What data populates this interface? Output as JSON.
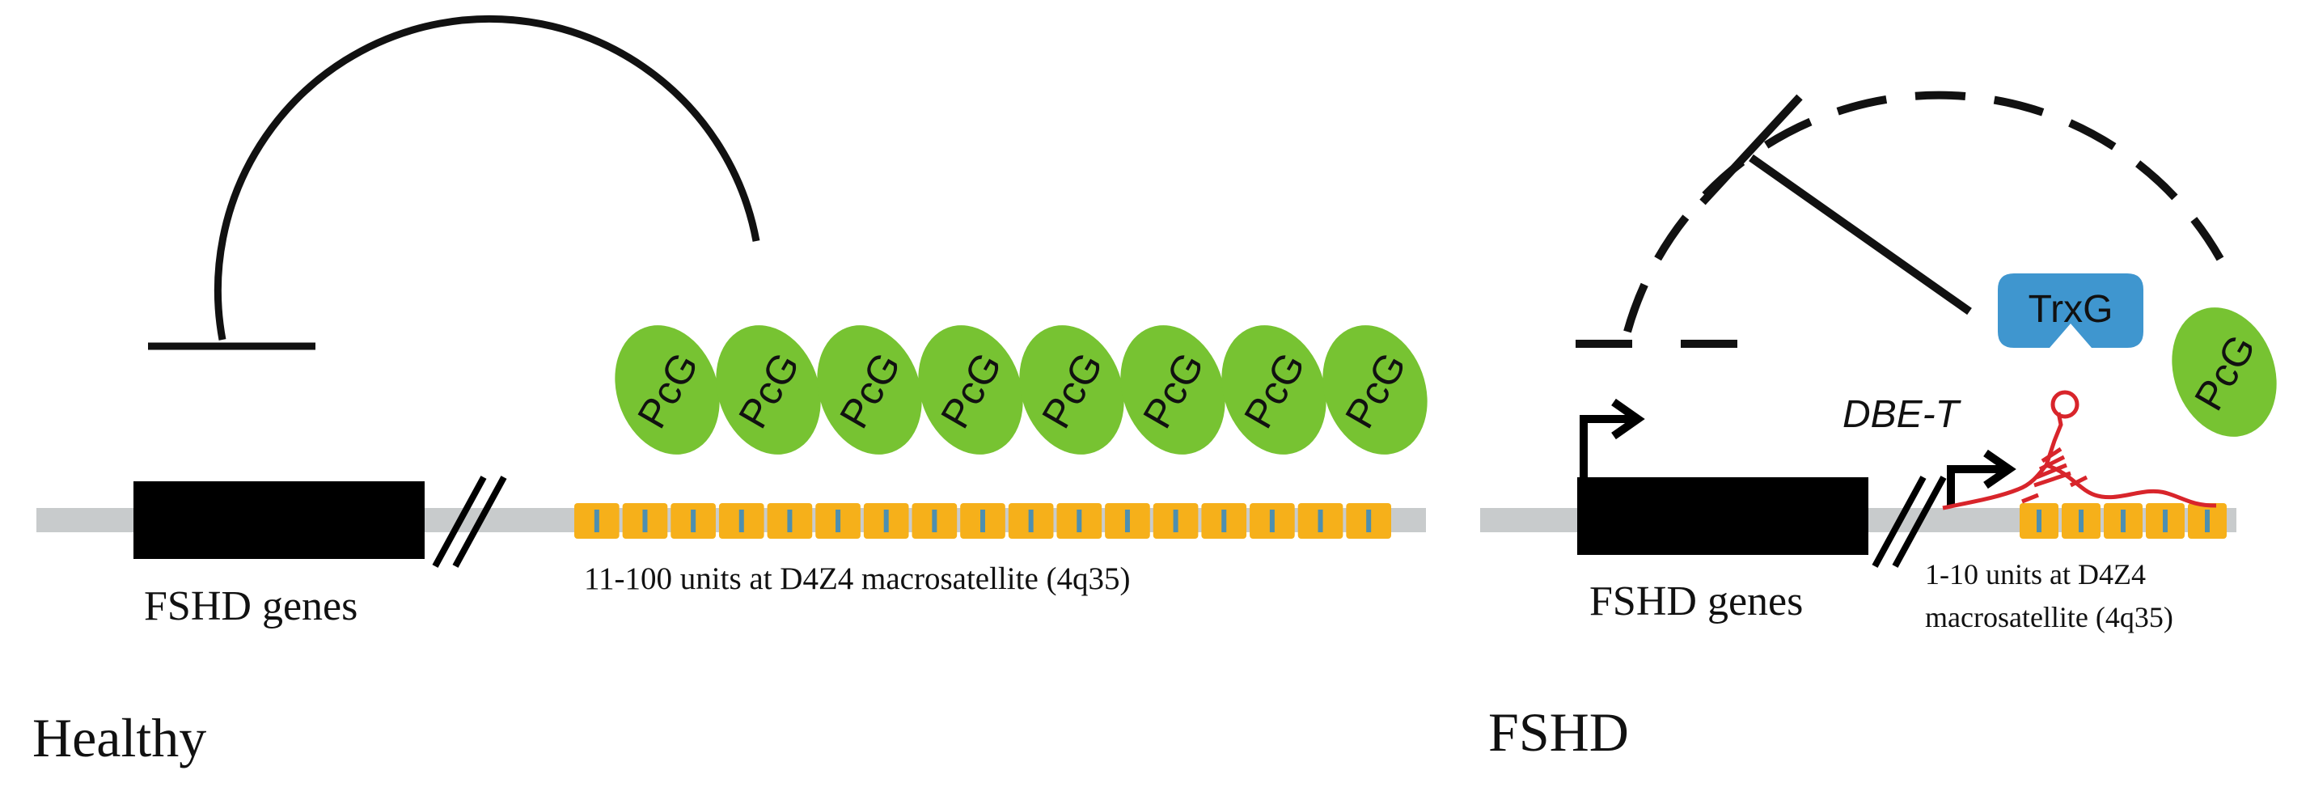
{
  "colors": {
    "background": "#ffffff",
    "dna_strand": "#c8cbcc",
    "repeat_unit": "#f6b01a",
    "repeat_divider": "#4d8fb0",
    "gene_block": "#000000",
    "pcg": "#77c332",
    "pcg_outline": "#5ea623",
    "trxg": "#3f96cf",
    "rna": "#d8252b",
    "line": "#111111"
  },
  "healthy": {
    "panel_label": "Healthy",
    "gene_label": "FSHD genes",
    "repeat_label": "11-100 units at D4Z4 macrosatellite (4q35)",
    "pcg_label": "PcG",
    "pcg_count": 8,
    "repeat_unit_count": 17
  },
  "fshd": {
    "panel_label": "FSHD",
    "gene_label": "FSHD genes",
    "repeat_label_line1": "1-10 units at D4Z4",
    "repeat_label_line2": "macrosatellite (4q35)",
    "rna_label": "DBE-T",
    "trxg_label": "TrxG",
    "pcg_label": "PcG",
    "repeat_unit_count": 5
  }
}
